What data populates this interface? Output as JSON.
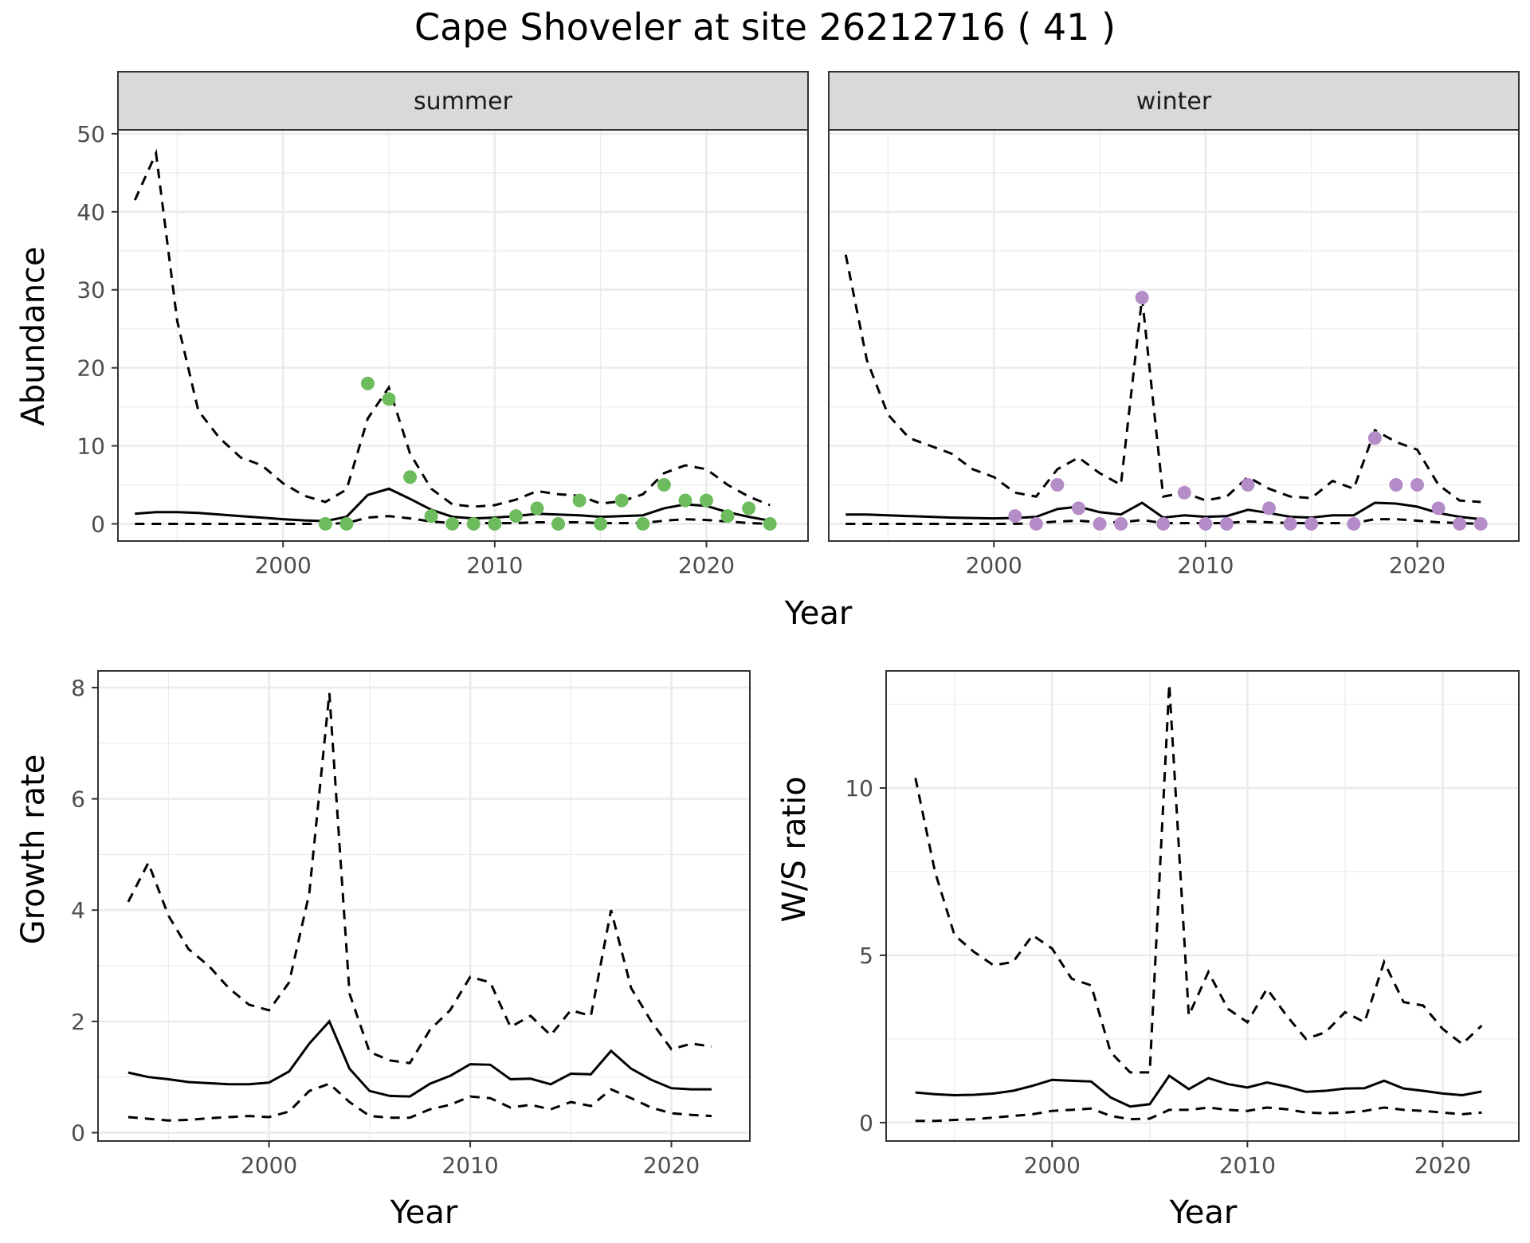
{
  "title": "Cape Shoveler at site 26212716 ( 41 )",
  "colors": {
    "summer_points": "#6cbb5c",
    "winter_points": "#b48cc8",
    "line": "#000000",
    "strip_fill": "#d9d9d9",
    "grid": "#ebebeb"
  },
  "chart_data": [
    {
      "id": "summer",
      "type": "line",
      "facet": "summer",
      "ylabel": "Abundance",
      "xlabel": "Year",
      "xlim": [
        1992.2,
        2024.8
      ],
      "ylim": [
        -2.2,
        50.5
      ],
      "xticks": [
        2000,
        2010,
        2020
      ],
      "yticks": [
        0,
        10,
        20,
        30,
        40,
        50
      ],
      "grid": true,
      "series": [
        {
          "role": "upper",
          "style": "dashed",
          "x": [
            1993,
            1994,
            1995,
            1996,
            1997,
            1998,
            1999,
            2000,
            2001,
            2002,
            2003,
            2004,
            2005,
            2006,
            2007,
            2008,
            2009,
            2010,
            2011,
            2012,
            2013,
            2014,
            2015,
            2016,
            2017,
            2018,
            2019,
            2020,
            2021,
            2022,
            2023
          ],
          "values": [
            41.5,
            47.5,
            26,
            14.5,
            11,
            8.5,
            7.5,
            5.2,
            3.6,
            2.8,
            4.4,
            13.5,
            17.5,
            9,
            4.5,
            2.5,
            2.2,
            2.4,
            3.1,
            4.2,
            3.8,
            3.6,
            2.6,
            2.9,
            3.8,
            6.5,
            7.5,
            7,
            5,
            3.5,
            2.4
          ]
        },
        {
          "role": "fit",
          "style": "solid",
          "x": [
            1993,
            1994,
            1995,
            1996,
            1997,
            1998,
            1999,
            2000,
            2001,
            2002,
            2003,
            2004,
            2005,
            2006,
            2007,
            2008,
            2009,
            2010,
            2011,
            2012,
            2013,
            2014,
            2015,
            2016,
            2017,
            2018,
            2019,
            2020,
            2021,
            2022,
            2023
          ],
          "values": [
            1.3,
            1.5,
            1.5,
            1.4,
            1.2,
            1,
            0.8,
            0.6,
            0.45,
            0.35,
            0.9,
            3.7,
            4.5,
            3.2,
            1.8,
            0.9,
            0.7,
            0.8,
            1,
            1.3,
            1.2,
            1.1,
            0.9,
            1,
            1.1,
            2,
            2.5,
            2.3,
            1.5,
            0.9,
            0.4
          ]
        },
        {
          "role": "lower",
          "style": "dashed",
          "x": [
            1993,
            1994,
            1995,
            1996,
            1997,
            1998,
            1999,
            2000,
            2001,
            2002,
            2003,
            2004,
            2005,
            2006,
            2007,
            2008,
            2009,
            2010,
            2011,
            2012,
            2013,
            2014,
            2015,
            2016,
            2017,
            2018,
            2019,
            2020,
            2021,
            2022,
            2023
          ],
          "values": [
            0,
            0,
            0,
            0,
            0,
            0,
            0,
            0,
            0,
            0,
            0.1,
            0.8,
            1,
            0.7,
            0.3,
            0.1,
            0.1,
            0.1,
            0.1,
            0.2,
            0.2,
            0.2,
            0.1,
            0.1,
            0.1,
            0.4,
            0.6,
            0.5,
            0.3,
            0.1,
            0
          ]
        }
      ],
      "points": {
        "x": [
          2002,
          2003,
          2004,
          2005,
          2006,
          2007,
          2008,
          2009,
          2010,
          2011,
          2012,
          2013,
          2014,
          2015,
          2016,
          2017,
          2018,
          2019,
          2020,
          2021,
          2022,
          2023
        ],
        "values": [
          0,
          0,
          18,
          16,
          6,
          1,
          0,
          0,
          0,
          1,
          2,
          0,
          3,
          0,
          3,
          0,
          5,
          3,
          3,
          1,
          2,
          0
        ]
      }
    },
    {
      "id": "winter",
      "type": "line",
      "facet": "winter",
      "ylabel": "Abundance",
      "xlabel": "Year",
      "xlim": [
        1992.2,
        2024.8
      ],
      "ylim": [
        -2.2,
        50.5
      ],
      "xticks": [
        2000,
        2010,
        2020
      ],
      "yticks": [
        0,
        10,
        20,
        30,
        40,
        50
      ],
      "grid": true,
      "series": [
        {
          "role": "upper",
          "style": "dashed",
          "x": [
            1993,
            1994,
            1995,
            1996,
            1997,
            1998,
            1999,
            2000,
            2001,
            2002,
            2003,
            2004,
            2005,
            2006,
            2007,
            2008,
            2009,
            2010,
            2011,
            2012,
            2013,
            2014,
            2015,
            2016,
            2017,
            2018,
            2019,
            2020,
            2021,
            2022,
            2023
          ],
          "values": [
            34.5,
            21,
            14,
            11,
            10,
            9,
            7,
            6,
            4,
            3.5,
            7,
            8.5,
            6.5,
            5,
            29,
            3.5,
            4,
            3,
            3.5,
            6,
            4.5,
            3.5,
            3.3,
            5.5,
            4.5,
            12,
            10.5,
            9.5,
            5,
            3,
            2.8
          ]
        },
        {
          "role": "fit",
          "style": "solid",
          "x": [
            1993,
            1994,
            1995,
            1996,
            1997,
            1998,
            1999,
            2000,
            2001,
            2002,
            2003,
            2004,
            2005,
            2006,
            2007,
            2008,
            2009,
            2010,
            2011,
            2012,
            2013,
            2014,
            2015,
            2016,
            2017,
            2018,
            2019,
            2020,
            2021,
            2022,
            2023
          ],
          "values": [
            1.2,
            1.2,
            1.1,
            1,
            0.9,
            0.8,
            0.75,
            0.7,
            0.75,
            0.9,
            1.9,
            2.2,
            1.5,
            1.2,
            2.7,
            0.8,
            1.1,
            0.9,
            1,
            1.8,
            1.4,
            0.9,
            0.8,
            1.1,
            1.1,
            2.7,
            2.6,
            2.2,
            1.4,
            0.9,
            0.6
          ]
        },
        {
          "role": "lower",
          "style": "dashed",
          "x": [
            1993,
            1994,
            1995,
            1996,
            1997,
            1998,
            1999,
            2000,
            2001,
            2002,
            2003,
            2004,
            2005,
            2006,
            2007,
            2008,
            2009,
            2010,
            2011,
            2012,
            2013,
            2014,
            2015,
            2016,
            2017,
            2018,
            2019,
            2020,
            2021,
            2022,
            2023
          ],
          "values": [
            0,
            0,
            0,
            0,
            0,
            0,
            0,
            0,
            0,
            0.1,
            0.3,
            0.4,
            0.2,
            0.2,
            0.5,
            0.1,
            0.1,
            0.1,
            0.1,
            0.3,
            0.2,
            0.1,
            0.1,
            0.1,
            0.1,
            0.6,
            0.6,
            0.4,
            0.2,
            0.1,
            0
          ]
        }
      ],
      "points": {
        "x": [
          2001,
          2002,
          2003,
          2004,
          2005,
          2006,
          2007,
          2008,
          2009,
          2010,
          2011,
          2012,
          2013,
          2014,
          2015,
          2017,
          2018,
          2019,
          2020,
          2021,
          2022,
          2023
        ],
        "values": [
          1,
          0,
          5,
          2,
          0,
          0,
          29,
          0,
          4,
          0,
          0,
          5,
          2,
          0,
          0,
          0,
          11,
          5,
          5,
          2,
          0,
          0
        ]
      }
    },
    {
      "id": "growth",
      "type": "line",
      "ylabel": "Growth rate",
      "xlabel": "Year",
      "xlim": [
        1991.5,
        2023.9
      ],
      "ylim": [
        -0.15,
        8.3
      ],
      "xticks": [
        2000,
        2010,
        2020
      ],
      "yticks": [
        0,
        2,
        4,
        6,
        8
      ],
      "grid": true,
      "series": [
        {
          "role": "upper",
          "style": "dashed",
          "x": [
            1993,
            1994,
            1995,
            1996,
            1997,
            1998,
            1999,
            2000,
            2001,
            2002,
            2003,
            2004,
            2005,
            2006,
            2007,
            2008,
            2009,
            2010,
            2011,
            2012,
            2013,
            2014,
            2015,
            2016,
            2017,
            2018,
            2019,
            2020,
            2021,
            2022
          ],
          "values": [
            4.15,
            4.85,
            3.9,
            3.3,
            3,
            2.6,
            2.3,
            2.2,
            2.7,
            4.3,
            7.9,
            2.5,
            1.45,
            1.3,
            1.25,
            1.85,
            2.2,
            2.8,
            2.7,
            1.9,
            2.1,
            1.75,
            2.2,
            2.1,
            4,
            2.6,
            2,
            1.5,
            1.6,
            1.55
          ]
        },
        {
          "role": "fit",
          "style": "solid",
          "x": [
            1993,
            1994,
            1995,
            1996,
            1997,
            1998,
            1999,
            2000,
            2001,
            2002,
            2003,
            2004,
            2005,
            2006,
            2007,
            2008,
            2009,
            2010,
            2011,
            2012,
            2013,
            2014,
            2015,
            2016,
            2017,
            2018,
            2019,
            2020,
            2021,
            2022
          ],
          "values": [
            1.08,
            1,
            0.96,
            0.91,
            0.89,
            0.87,
            0.87,
            0.9,
            1.1,
            1.6,
            2,
            1.15,
            0.75,
            0.66,
            0.65,
            0.88,
            1.02,
            1.23,
            1.22,
            0.96,
            0.97,
            0.87,
            1.06,
            1.05,
            1.47,
            1.15,
            0.95,
            0.8,
            0.78,
            0.78
          ]
        },
        {
          "role": "lower",
          "style": "dashed",
          "x": [
            1993,
            1994,
            1995,
            1996,
            1997,
            1998,
            1999,
            2000,
            2001,
            2002,
            2003,
            2004,
            2005,
            2006,
            2007,
            2008,
            2009,
            2010,
            2011,
            2012,
            2013,
            2014,
            2015,
            2016,
            2017,
            2018,
            2019,
            2020,
            2021,
            2022
          ],
          "values": [
            0.28,
            0.25,
            0.22,
            0.23,
            0.26,
            0.28,
            0.3,
            0.28,
            0.38,
            0.75,
            0.88,
            0.55,
            0.3,
            0.27,
            0.27,
            0.42,
            0.5,
            0.65,
            0.62,
            0.45,
            0.5,
            0.42,
            0.55,
            0.48,
            0.78,
            0.62,
            0.45,
            0.35,
            0.32,
            0.3
          ]
        }
      ]
    },
    {
      "id": "ratio",
      "type": "line",
      "ylabel": "W/S ratio",
      "xlabel": "Year",
      "xlim": [
        1991.5,
        2023.9
      ],
      "ylim": [
        -0.55,
        13.5
      ],
      "xticks": [
        2000,
        2010,
        2020
      ],
      "yticks": [
        0,
        5,
        10
      ],
      "grid": true,
      "series": [
        {
          "role": "upper",
          "style": "dashed",
          "x": [
            1993,
            1994,
            1995,
            1996,
            1997,
            1998,
            1999,
            2000,
            2001,
            2002,
            2003,
            2004,
            2005,
            2006,
            2007,
            2008,
            2009,
            2010,
            2011,
            2012,
            2013,
            2014,
            2015,
            2016,
            2017,
            2018,
            2019,
            2020,
            2021,
            2022
          ],
          "values": [
            10.3,
            7.5,
            5.6,
            5.1,
            4.7,
            4.8,
            5.6,
            5.2,
            4.3,
            4.1,
            2.1,
            1.5,
            1.5,
            13.1,
            3.2,
            4.5,
            3.4,
            3,
            4,
            3.2,
            2.5,
            2.7,
            3.3,
            3,
            4.8,
            3.6,
            3.5,
            2.8,
            2.35,
            2.9
          ]
        },
        {
          "role": "fit",
          "style": "solid",
          "x": [
            1993,
            1994,
            1995,
            1996,
            1997,
            1998,
            1999,
            2000,
            2001,
            2002,
            2003,
            2004,
            2005,
            2006,
            2007,
            2008,
            2009,
            2010,
            2011,
            2012,
            2013,
            2014,
            2015,
            2016,
            2017,
            2018,
            2019,
            2020,
            2021,
            2022
          ],
          "values": [
            0.9,
            0.85,
            0.82,
            0.83,
            0.87,
            0.95,
            1.1,
            1.28,
            1.25,
            1.23,
            0.75,
            0.48,
            0.55,
            1.4,
            1,
            1.33,
            1.15,
            1.05,
            1.2,
            1.08,
            0.92,
            0.95,
            1.02,
            1.03,
            1.25,
            1.02,
            0.95,
            0.87,
            0.82,
            0.93
          ]
        },
        {
          "role": "lower",
          "style": "dashed",
          "x": [
            1993,
            1994,
            1995,
            1996,
            1997,
            1998,
            1999,
            2000,
            2001,
            2002,
            2003,
            2004,
            2005,
            2006,
            2007,
            2008,
            2009,
            2010,
            2011,
            2012,
            2013,
            2014,
            2015,
            2016,
            2017,
            2018,
            2019,
            2020,
            2021,
            2022
          ],
          "values": [
            0.05,
            0.05,
            0.08,
            0.1,
            0.15,
            0.2,
            0.25,
            0.35,
            0.38,
            0.42,
            0.2,
            0.1,
            0.12,
            0.38,
            0.38,
            0.45,
            0.38,
            0.35,
            0.45,
            0.4,
            0.3,
            0.28,
            0.3,
            0.35,
            0.45,
            0.38,
            0.35,
            0.3,
            0.25,
            0.3
          ]
        }
      ]
    }
  ]
}
